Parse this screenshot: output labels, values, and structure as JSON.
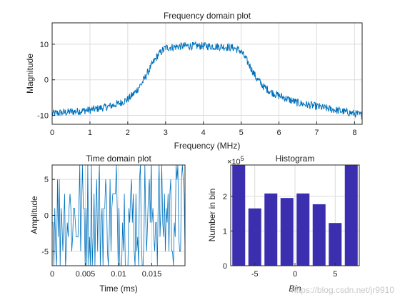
{
  "page": {
    "watermark": "https://blog.csdn.net/jr9910"
  },
  "colors": {
    "line": "#0072bd",
    "bar": "#3b2fb0",
    "axis": "#262626",
    "grid": "#dcdcdc"
  },
  "chart_data": [
    {
      "id": "freq",
      "type": "line",
      "title": "Frequency domain plot",
      "xlabel": "Frequency (MHz)",
      "ylabel": "Magnitude",
      "xlim": [
        0,
        8.2
      ],
      "ylim": [
        -12.5,
        16
      ],
      "xticks": [
        0,
        1,
        2,
        3,
        4,
        5,
        6,
        7,
        8
      ],
      "yticks": [
        -10,
        0,
        10
      ],
      "grid": true,
      "series": [
        {
          "x": [
            0,
            0.5,
            1.0,
            1.5,
            1.8,
            2.0,
            2.2,
            2.4,
            2.6,
            2.8,
            3.0,
            3.5,
            4.0,
            4.5,
            4.8,
            5.0,
            5.2,
            5.4,
            5.6,
            5.8,
            6.0,
            6.5,
            7.0,
            7.5,
            8.0,
            8.2
          ],
          "y": [
            -9.5,
            -9.0,
            -8.5,
            -7.5,
            -6.5,
            -5.5,
            -3.5,
            -0.5,
            3.5,
            7.0,
            9.0,
            9.5,
            9.5,
            9.3,
            9.0,
            8.0,
            4.5,
            0.5,
            -2.0,
            -3.5,
            -4.5,
            -6.5,
            -7.5,
            -8.5,
            -9.5,
            -10.0
          ]
        }
      ]
    },
    {
      "id": "time",
      "type": "line",
      "title": "Time domain plot",
      "xlabel": "Time (ms)",
      "ylabel": "Amplitude",
      "xlim": [
        0,
        0.02
      ],
      "ylim": [
        -7,
        7
      ],
      "xticks": [
        0,
        0.005,
        0.01,
        0.015
      ],
      "xticklabels": [
        "0",
        "0.005",
        "0.01",
        "0.015"
      ],
      "yticks": [
        -5,
        0,
        5
      ],
      "grid": true,
      "series": [
        {
          "levels": [
            -7,
            -5,
            -3,
            -1,
            1,
            3,
            5,
            7
          ],
          "samples": 150
        }
      ]
    },
    {
      "id": "hist",
      "type": "bar",
      "title": "Histogram",
      "xlabel": "Bin",
      "ylabel": "Number in bin",
      "exponent_label": "×10",
      "exponent_power": "5",
      "xlim": [
        -8,
        8
      ],
      "ylim": [
        0,
        2.9
      ],
      "xticks": [
        -5,
        0,
        5
      ],
      "yticks": [
        0,
        1,
        2
      ],
      "grid": true,
      "categories": [
        -7,
        -5,
        -3,
        -1,
        1,
        3,
        5,
        7
      ],
      "values": [
        2.9,
        1.65,
        2.08,
        1.95,
        2.08,
        1.77,
        1.23,
        2.9
      ]
    }
  ]
}
